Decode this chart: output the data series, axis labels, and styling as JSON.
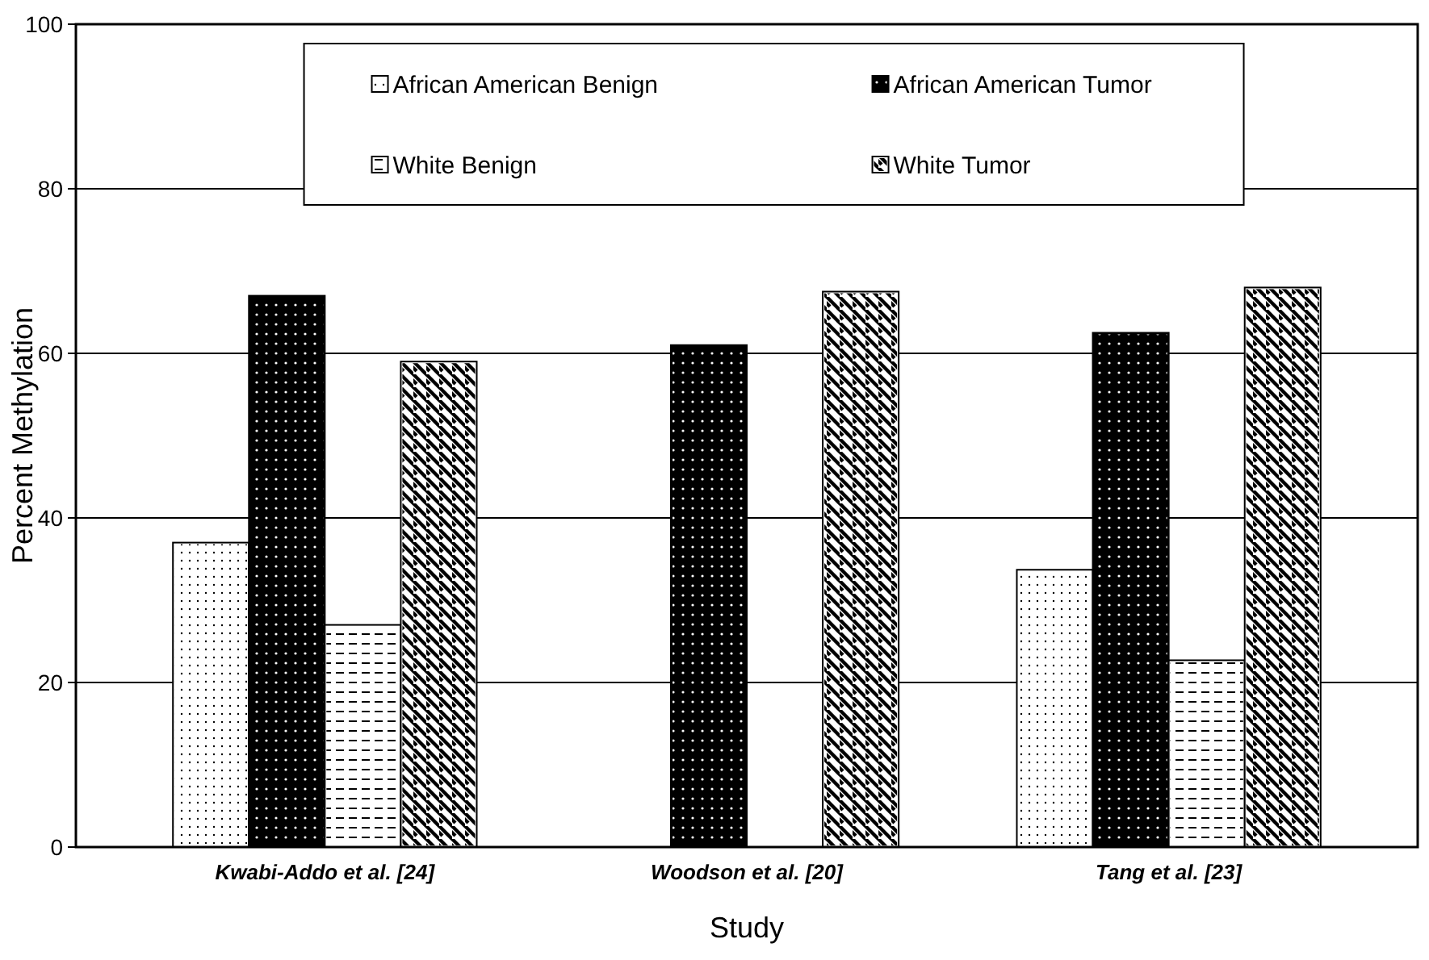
{
  "chart_data": {
    "type": "bar",
    "xlabel": "Study",
    "ylabel": "Percent Methylation",
    "categories": [
      "Kwabi-Addo et al. [24]",
      "Woodson et al. [20]",
      "Tang et al. [23]"
    ],
    "series": [
      {
        "name": "African American Benign",
        "color": "#ffffff",
        "values": [
          37,
          null,
          33.7
        ]
      },
      {
        "name": "African American Tumor",
        "color": "#000000",
        "values": [
          67,
          61,
          62.5
        ]
      },
      {
        "name": "White Benign",
        "color": "#ffffff",
        "values": [
          27,
          null,
          22.7
        ]
      },
      {
        "name": "White Tumor",
        "color": "#ffffff",
        "values": [
          59,
          67.5,
          68
        ]
      }
    ],
    "ylim": [
      0,
      100
    ],
    "yticks": [
      0,
      20,
      40,
      60,
      80,
      100
    ],
    "grid": "y",
    "legend": "top"
  }
}
